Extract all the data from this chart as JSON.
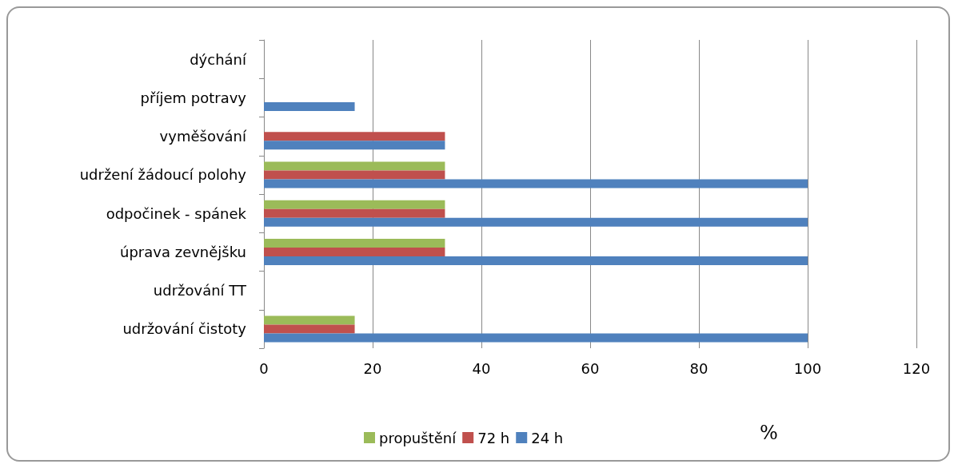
{
  "chart_data": {
    "type": "bar",
    "orientation": "horizontal",
    "categories": [
      "dýchání",
      "příjem potravy",
      "vyměšování",
      "udržení žádoucí polohy",
      "odpočinek - spánek",
      "úprava zevnějšku",
      "udržování TT",
      "udržování čistoty"
    ],
    "series": [
      {
        "name": "propuštění",
        "color": "#9bbb59",
        "values": [
          null,
          null,
          null,
          33.3,
          33.3,
          33.3,
          null,
          16.7
        ]
      },
      {
        "name": "72 h",
        "color": "#c0504d",
        "values": [
          null,
          null,
          33.3,
          33.3,
          33.3,
          33.3,
          null,
          16.7
        ]
      },
      {
        "name": "24 h",
        "color": "#4f81bd",
        "values": [
          null,
          16.7,
          33.3,
          100,
          100,
          100,
          null,
          100
        ]
      }
    ],
    "xlim": [
      0,
      120
    ],
    "xticks": [
      0,
      20,
      40,
      60,
      80,
      100,
      120
    ],
    "xlabel": "%",
    "grid": "x",
    "legend": "bottom"
  }
}
